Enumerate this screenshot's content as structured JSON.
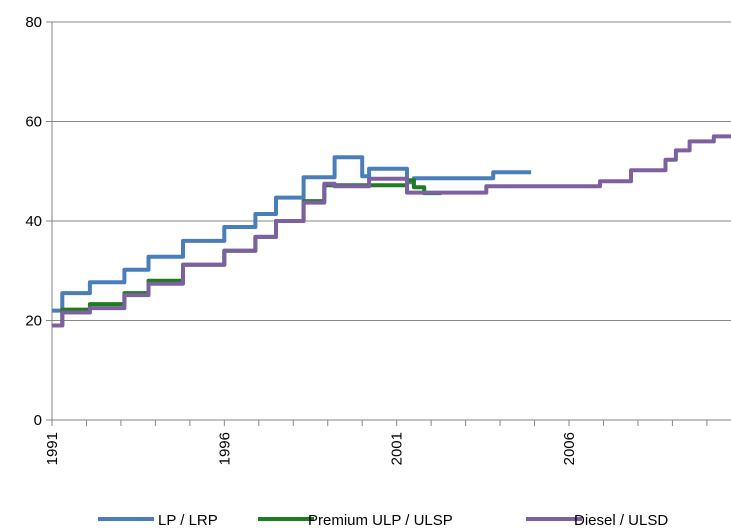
{
  "chart_data": {
    "type": "line",
    "title": "",
    "xlabel": "",
    "ylabel": "",
    "ylim": [
      0,
      80
    ],
    "xlim": [
      1991,
      2010.7
    ],
    "yticks": [
      {
        "value": 0,
        "label": "0"
      },
      {
        "value": 20,
        "label": "20"
      },
      {
        "value": 40,
        "label": "40"
      },
      {
        "value": 60,
        "label": "60"
      },
      {
        "value": 80,
        "label": "80"
      }
    ],
    "xticks": [
      {
        "value": 1991,
        "label": "1991"
      },
      {
        "value": 1996,
        "label": "1996"
      },
      {
        "value": 2001,
        "label": "2001"
      },
      {
        "value": 2006,
        "label": "2006"
      }
    ],
    "grid": "horizontal",
    "legend_position": "bottom",
    "series": [
      {
        "name": "LP / LRP",
        "color": "#4a7ebb",
        "points": [
          [
            1991.0,
            22
          ],
          [
            1991.3,
            22
          ],
          [
            1991.3,
            25.5
          ],
          [
            1992.1,
            25.5
          ],
          [
            1992.1,
            27.7
          ],
          [
            1993.1,
            27.7
          ],
          [
            1993.1,
            30.2
          ],
          [
            1993.8,
            30.2
          ],
          [
            1993.8,
            32.8
          ],
          [
            1994.8,
            32.8
          ],
          [
            1994.8,
            36
          ],
          [
            1996.0,
            36
          ],
          [
            1996.0,
            38.8
          ],
          [
            1996.9,
            38.8
          ],
          [
            1996.9,
            41.4
          ],
          [
            1997.5,
            41.4
          ],
          [
            1997.5,
            44.7
          ],
          [
            1998.3,
            44.7
          ],
          [
            1998.3,
            48.8
          ],
          [
            1999.2,
            48.8
          ],
          [
            1999.2,
            52.8
          ],
          [
            2000.0,
            52.8
          ],
          [
            2000.0,
            49
          ],
          [
            2000.2,
            49
          ],
          [
            2000.2,
            50.5
          ],
          [
            2001.3,
            50.5
          ],
          [
            2001.3,
            47.8
          ],
          [
            2001.5,
            47.8
          ],
          [
            2001.5,
            48.6
          ],
          [
            2003.8,
            48.6
          ],
          [
            2003.8,
            49.8
          ],
          [
            2004.9,
            49.8
          ]
        ]
      },
      {
        "name": "Premium ULP / ULSP",
        "color": "#1e7d1e",
        "points": [
          [
            1991.0,
            19
          ],
          [
            1991.3,
            19
          ],
          [
            1991.3,
            22.2
          ],
          [
            1992.1,
            22.2
          ],
          [
            1992.1,
            23.3
          ],
          [
            1993.1,
            23.3
          ],
          [
            1993.1,
            25.5
          ],
          [
            1993.8,
            25.5
          ],
          [
            1993.8,
            28
          ],
          [
            1994.8,
            28
          ],
          [
            1994.8,
            31.2
          ],
          [
            1996.0,
            31.2
          ],
          [
            1996.0,
            34
          ],
          [
            1996.9,
            34
          ],
          [
            1996.9,
            36.8
          ],
          [
            1997.5,
            36.8
          ],
          [
            1997.5,
            40
          ],
          [
            1998.3,
            40
          ],
          [
            1998.3,
            44
          ],
          [
            1998.9,
            44
          ],
          [
            1998.9,
            47.2
          ],
          [
            2001.3,
            47.2
          ],
          [
            2001.3,
            48.2
          ],
          [
            2001.5,
            48.2
          ],
          [
            2001.5,
            46.8
          ],
          [
            2001.8,
            46.8
          ],
          [
            2001.8,
            45.6
          ],
          [
            2002.3,
            45.6
          ]
        ]
      },
      {
        "name": "Diesel / ULSD",
        "color": "#7d60a0",
        "points": [
          [
            1991.0,
            19
          ],
          [
            1991.3,
            19
          ],
          [
            1991.3,
            21.6
          ],
          [
            1992.1,
            21.6
          ],
          [
            1992.1,
            22.5
          ],
          [
            1993.1,
            22.5
          ],
          [
            1993.1,
            25.1
          ],
          [
            1993.8,
            25.1
          ],
          [
            1993.8,
            27.4
          ],
          [
            1994.8,
            27.4
          ],
          [
            1994.8,
            31.2
          ],
          [
            1996.0,
            31.2
          ],
          [
            1996.0,
            34
          ],
          [
            1996.9,
            34
          ],
          [
            1996.9,
            36.8
          ],
          [
            1997.5,
            36.8
          ],
          [
            1997.5,
            40
          ],
          [
            1998.3,
            40
          ],
          [
            1998.3,
            43.7
          ],
          [
            1998.9,
            43.7
          ],
          [
            1998.9,
            47.5
          ],
          [
            1999.2,
            47.5
          ],
          [
            1999.2,
            47
          ],
          [
            2000.2,
            47
          ],
          [
            2000.2,
            48.5
          ],
          [
            2001.3,
            48.5
          ],
          [
            2001.3,
            45.7
          ],
          [
            2003.6,
            45.7
          ],
          [
            2003.6,
            47
          ],
          [
            2006.9,
            47
          ],
          [
            2006.9,
            48
          ],
          [
            2007.8,
            48
          ],
          [
            2007.8,
            50.2
          ],
          [
            2008.8,
            50.2
          ],
          [
            2008.8,
            52.3
          ],
          [
            2009.1,
            52.3
          ],
          [
            2009.1,
            54.2
          ],
          [
            2009.5,
            54.2
          ],
          [
            2009.5,
            56
          ],
          [
            2010.2,
            56
          ],
          [
            2010.2,
            57
          ],
          [
            2010.7,
            57
          ]
        ]
      }
    ]
  }
}
